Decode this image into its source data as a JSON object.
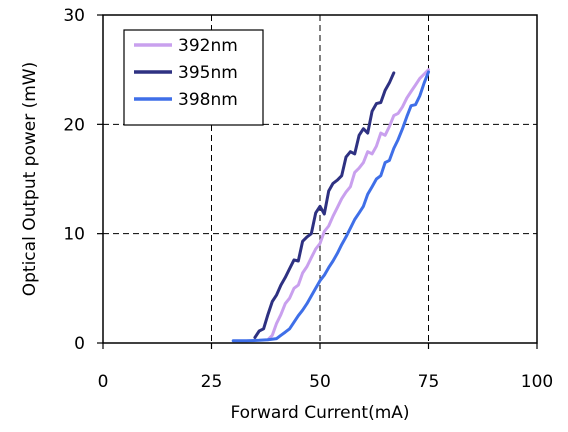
{
  "chart_data": {
    "type": "line",
    "xlabel": "Forward Current(mA)",
    "ylabel": "Optical Output power (mW)",
    "xlim": [
      0,
      100
    ],
    "ylim": [
      0,
      30
    ],
    "xticks": [
      0,
      25,
      50,
      75,
      100
    ],
    "yticks": [
      0,
      10,
      20,
      30
    ],
    "grid": true,
    "grid_style": "dashed",
    "legend_position": "top-left",
    "series": [
      {
        "name": "392nm",
        "color": "#c9a0ee",
        "x": [
          38,
          39,
          40,
          41,
          42,
          43,
          44,
          45,
          46,
          47,
          48,
          49,
          50,
          51,
          52,
          53,
          54,
          55,
          56,
          57,
          58,
          59,
          60,
          61,
          62,
          63,
          64,
          65,
          66,
          67,
          68,
          69,
          70,
          71,
          72,
          73,
          74,
          75
        ],
        "y": [
          0.3,
          0.7,
          1.8,
          2.6,
          3.6,
          4.1,
          5.0,
          5.3,
          6.4,
          7.0,
          7.8,
          8.6,
          9.1,
          10.2,
          10.7,
          11.6,
          12.4,
          13.2,
          13.8,
          14.3,
          15.6,
          16.0,
          16.5,
          17.5,
          17.3,
          18.0,
          19.2,
          19.0,
          19.8,
          20.8,
          21.0,
          21.6,
          22.4,
          23.0,
          23.6,
          24.2,
          24.6,
          25.0
        ]
      },
      {
        "name": "395nm",
        "color": "#2e3182",
        "x": [
          35,
          36,
          37,
          38,
          39,
          40,
          41,
          42,
          43,
          44,
          45,
          46,
          47,
          48,
          49,
          50,
          51,
          52,
          53,
          54,
          55,
          56,
          57,
          58,
          59,
          60,
          61,
          62,
          63,
          64,
          65,
          66,
          67
        ],
        "y": [
          0.5,
          1.1,
          1.3,
          2.6,
          3.8,
          4.4,
          5.3,
          6.0,
          6.8,
          7.6,
          7.5,
          9.3,
          9.7,
          10.0,
          11.9,
          12.5,
          11.8,
          13.9,
          14.6,
          14.9,
          15.3,
          17.0,
          17.5,
          17.3,
          19.0,
          19.6,
          19.2,
          21.2,
          21.9,
          22.0,
          23.1,
          23.8,
          24.7
        ]
      },
      {
        "name": "398nm",
        "color": "#3f6fe8",
        "x": [
          30,
          33,
          36,
          38,
          40,
          41,
          42,
          43,
          44,
          45,
          46,
          47,
          48,
          49,
          50,
          51,
          52,
          53,
          54,
          55,
          56,
          57,
          58,
          59,
          60,
          61,
          62,
          63,
          64,
          65,
          66,
          67,
          68,
          69,
          70,
          71,
          72,
          73,
          74,
          75
        ],
        "y": [
          0.2,
          0.2,
          0.25,
          0.3,
          0.4,
          0.7,
          1.0,
          1.3,
          1.9,
          2.5,
          3.0,
          3.6,
          4.3,
          5.0,
          5.7,
          6.2,
          6.9,
          7.5,
          8.2,
          9.0,
          9.7,
          10.5,
          11.3,
          11.9,
          12.5,
          13.6,
          14.3,
          15.0,
          15.3,
          16.5,
          16.7,
          17.8,
          18.6,
          19.6,
          20.7,
          21.7,
          21.8,
          22.6,
          23.8,
          24.8
        ]
      }
    ]
  }
}
